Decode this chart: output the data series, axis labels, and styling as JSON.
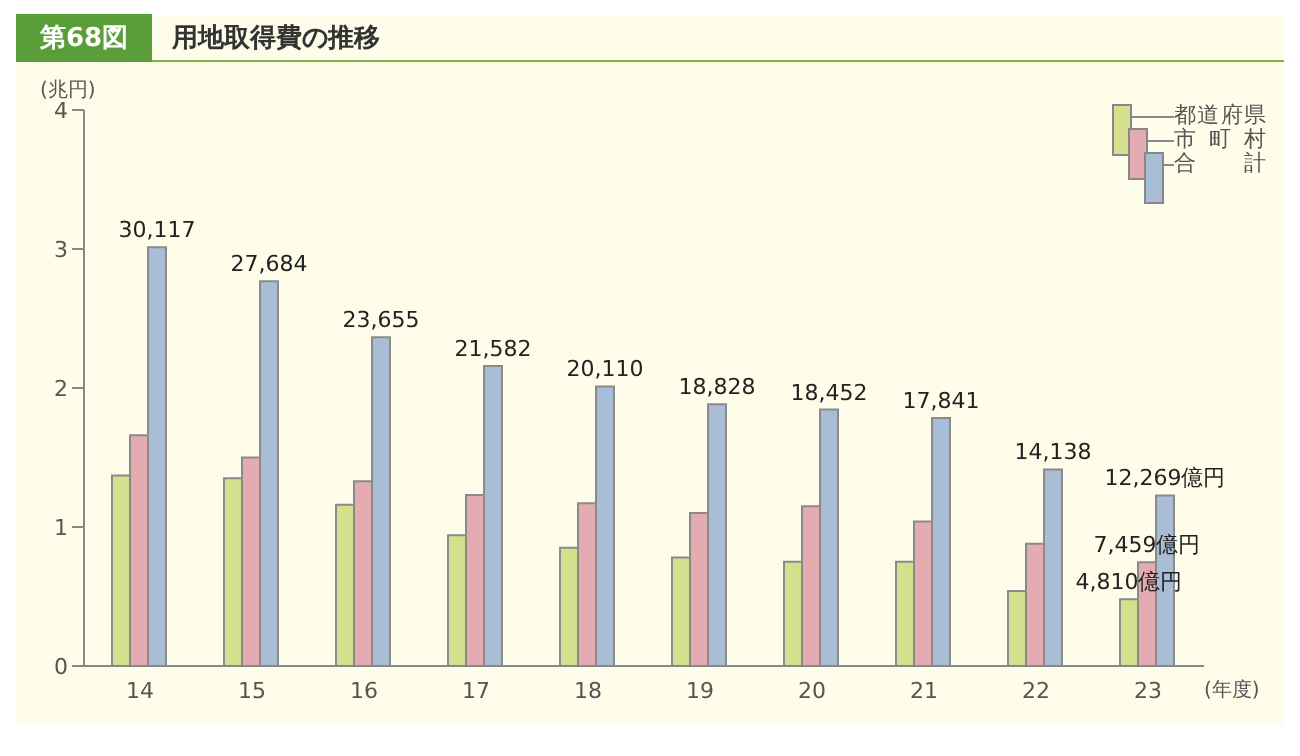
{
  "chart_data": {
    "type": "bar",
    "title": "用地取得費の推移",
    "ylabel": "(兆円)",
    "xlabel": "(年度)",
    "annotations": [
      "第68図",
      {
        "text": "30,117",
        "x": "14",
        "y": 3.0117
      },
      {
        "text": "27,684",
        "x": "15",
        "y": 2.7684
      },
      {
        "text": "23,655",
        "x": "16",
        "y": 2.3655
      },
      {
        "text": "21,582",
        "x": "17",
        "y": 2.1582
      },
      {
        "text": "20,110",
        "x": "18",
        "y": 2.011
      },
      {
        "text": "18,828",
        "x": "19",
        "y": 1.8828
      },
      {
        "text": "18,452",
        "x": "20",
        "y": 1.8452
      },
      {
        "text": "17,841",
        "x": "21",
        "y": 1.7841
      },
      {
        "text": "14,138",
        "x": "22",
        "y": 1.4138
      },
      {
        "text": "12,269億円",
        "x": "23",
        "y": 1.2269
      },
      {
        "text": "7,459億円",
        "x": "23",
        "y": 0.7459
      },
      {
        "text": "4,810億円",
        "x": "23",
        "y": 0.481
      }
    ],
    "categories": [
      "14",
      "15",
      "16",
      "17",
      "18",
      "19",
      "20",
      "21",
      "22",
      "23"
    ],
    "series": [
      {
        "name": "都道府県",
        "color": "#d5e08c",
        "values": [
          1.37,
          1.35,
          1.16,
          0.94,
          0.85,
          0.78,
          0.75,
          0.75,
          0.54,
          0.481
        ]
      },
      {
        "name": "市町村",
        "color": "#e4abb0",
        "values": [
          1.66,
          1.5,
          1.33,
          1.23,
          1.17,
          1.1,
          1.15,
          1.04,
          0.88,
          0.7459
        ]
      },
      {
        "name": "合計",
        "color": "#aabdd6",
        "values": [
          3.0117,
          2.7684,
          2.3655,
          2.1582,
          2.011,
          1.8828,
          1.8452,
          1.7841,
          1.4138,
          1.2269
        ]
      }
    ],
    "ylim": [
      0,
      4
    ],
    "yticks": [
      0,
      1,
      2,
      3,
      4
    ],
    "grid": false,
    "legend": "top right"
  }
}
